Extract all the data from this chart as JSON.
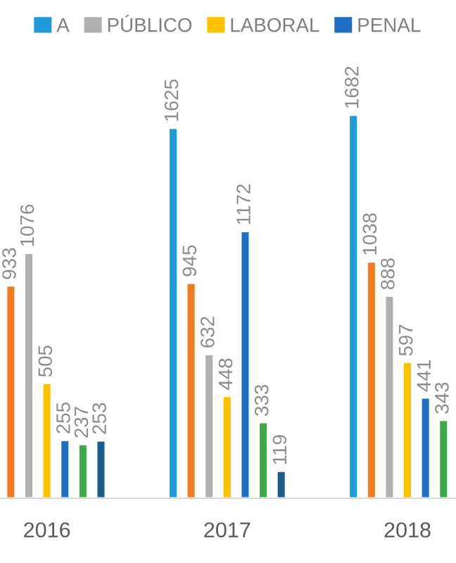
{
  "chart_data": {
    "type": "bar",
    "categories": [
      "2016",
      "2017",
      "2018"
    ],
    "series": [
      {
        "name": "A",
        "color": "#1f9bd7",
        "values": [
          null,
          1625,
          1682
        ]
      },
      {
        "color": "#f47a20",
        "values": [
          933,
          945,
          1038
        ]
      },
      {
        "name": "PÚBLICO",
        "color": "#b0b0b0",
        "values": [
          1076,
          632,
          888
        ]
      },
      {
        "name": "LABORAL",
        "color": "#ffc000",
        "values": [
          505,
          448,
          597
        ]
      },
      {
        "name": "PENAL",
        "color": "#1f6fc5",
        "values": [
          255,
          1172,
          441
        ]
      },
      {
        "color": "#3daa48",
        "values": [
          237,
          333,
          343
        ]
      },
      {
        "color": "#1a5c8c",
        "values": [
          253,
          119,
          null
        ]
      }
    ],
    "data_labels": true,
    "legend": "top",
    "grid": false
  }
}
